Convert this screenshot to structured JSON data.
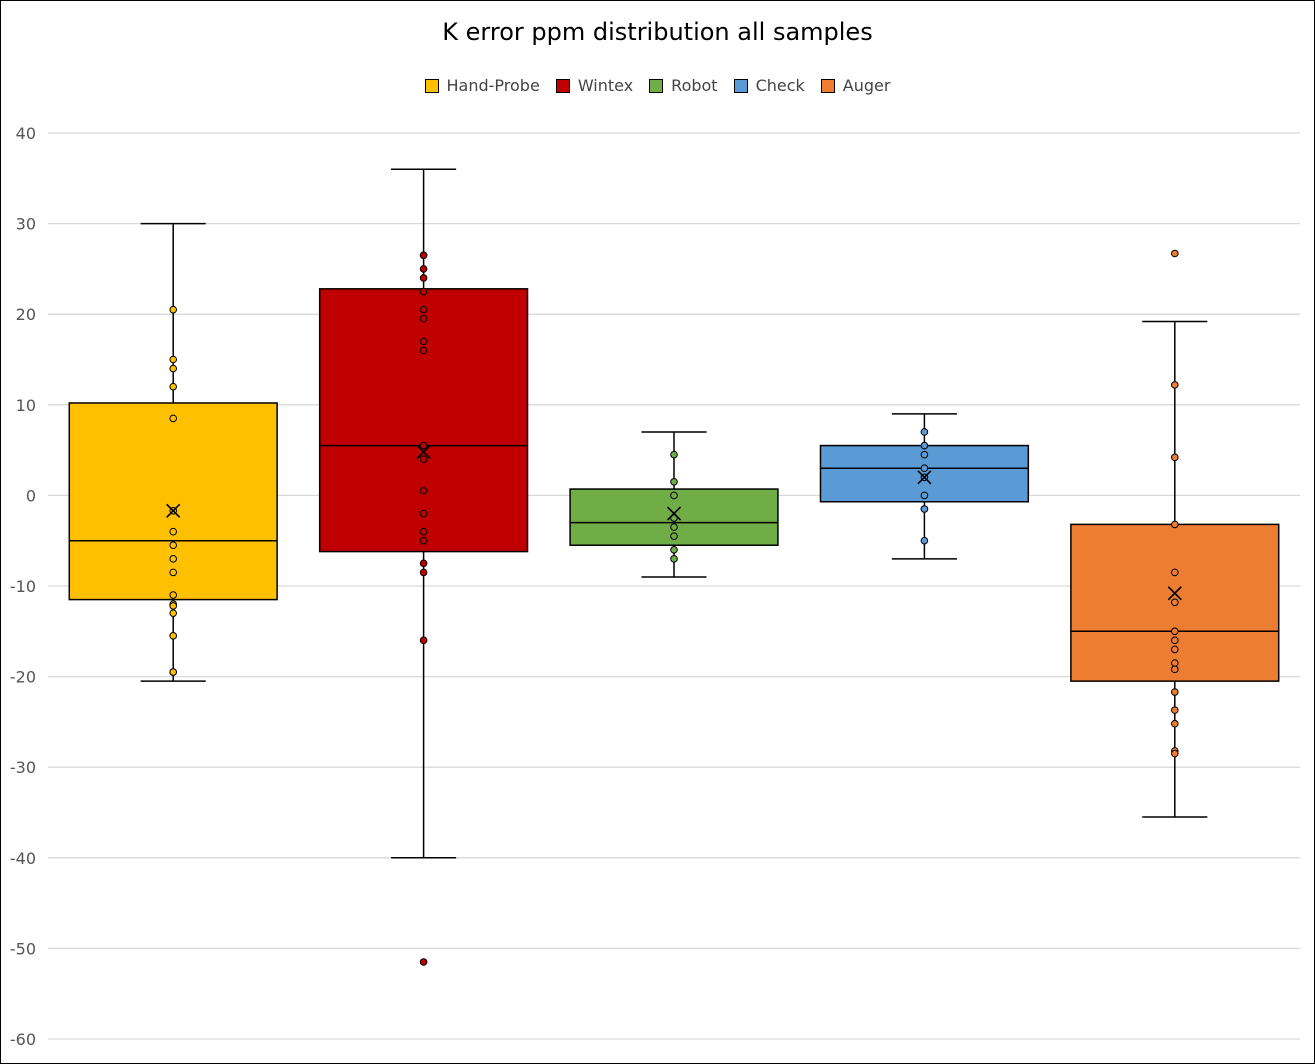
{
  "chart_data": {
    "type": "box",
    "title": "K error ppm distribution all samples",
    "xlabel": "",
    "ylabel": "",
    "ylim": [
      -60,
      40
    ],
    "yticks": [
      40,
      30,
      20,
      10,
      0,
      -10,
      -20,
      -30,
      -40,
      -50,
      -60
    ],
    "grid": true,
    "legend_position": "top",
    "series": [
      {
        "name": "Hand-Probe",
        "color": "#FFC000",
        "min": -20.5,
        "q1": -11.5,
        "median": -5,
        "q3": 10.2,
        "max": 30,
        "mean": -1.7,
        "points": [
          20.5,
          15,
          14,
          12,
          8.5,
          -1.7,
          -4,
          -5.5,
          -7,
          -8.5,
          -11,
          -12,
          -12.2,
          -13,
          -15.5,
          -19.5,
          -19.5
        ],
        "outliers": []
      },
      {
        "name": "Wintex",
        "color": "#C00000",
        "min": -40,
        "q1": -6.2,
        "median": 5.5,
        "q3": 22.8,
        "max": 36,
        "mean": 4.8,
        "points": [
          26.5,
          26.5,
          25,
          24,
          22.5,
          20.5,
          19.5,
          17,
          16,
          5.5,
          4,
          0.5,
          -2,
          -4,
          -5,
          -7.5,
          -8.5,
          -16
        ],
        "outliers": [
          -51.5
        ]
      },
      {
        "name": "Robot",
        "color": "#70AD47",
        "min": -9,
        "q1": -5.5,
        "median": -3,
        "q3": 0.7,
        "max": 7,
        "mean": -2,
        "points": [
          4.5,
          1.5,
          0,
          -2.5,
          -3.5,
          -4.5,
          -6,
          -7
        ],
        "outliers": []
      },
      {
        "name": "Check",
        "color": "#5B9BD5",
        "min": -7,
        "q1": -0.7,
        "median": 3,
        "q3": 5.5,
        "max": 9,
        "mean": 2,
        "points": [
          7,
          5.5,
          4.5,
          3,
          2,
          0,
          -1.5,
          -1.5,
          -5
        ],
        "outliers": []
      },
      {
        "name": "Auger",
        "color": "#ED7D31",
        "min": -35.5,
        "q1": -20.5,
        "median": -15,
        "q3": -3.2,
        "max": 19.2,
        "mean": -10.8,
        "points": [
          12.2,
          4.2,
          -3.2,
          -8.5,
          -11.8,
          -15,
          -16,
          -17,
          -18.5,
          -19.2,
          -21.7,
          -23.7,
          -25.2,
          -28.2,
          -28.5
        ],
        "outliers": [
          26.7
        ]
      }
    ]
  }
}
